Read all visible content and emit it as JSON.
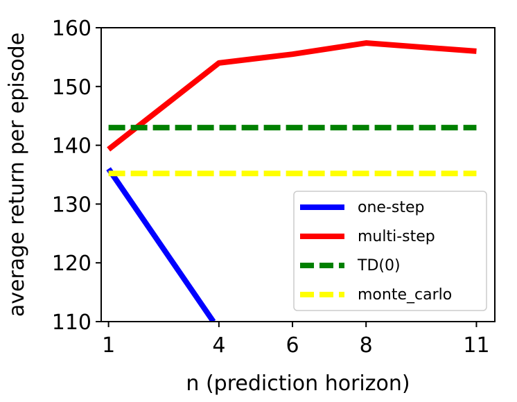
{
  "chart_data": {
    "type": "line",
    "xlabel": "n (prediction horizon)",
    "ylabel": "average return per episode",
    "xlim": [
      0.8,
      11.5
    ],
    "ylim": [
      110,
      160
    ],
    "xticks": [
      1,
      4,
      6,
      8,
      11
    ],
    "yticks": [
      110,
      120,
      130,
      140,
      150,
      160
    ],
    "grid": false,
    "legend_position": "lower-right",
    "series": [
      {
        "name": "one-step",
        "color": "#0000ff",
        "style": "solid",
        "x": [
          1,
          3.85
        ],
        "y": [
          136,
          110
        ]
      },
      {
        "name": "multi-step",
        "color": "#ff0000",
        "style": "solid",
        "x": [
          1,
          4,
          6,
          8,
          11
        ],
        "y": [
          139.3,
          154,
          155.5,
          157.4,
          156
        ]
      },
      {
        "name": "TD(0)",
        "color": "#008000",
        "style": "dashed",
        "x": [
          1,
          11
        ],
        "y": [
          143,
          143
        ]
      },
      {
        "name": "monte_carlo",
        "color": "#ffff00",
        "style": "dashed",
        "x": [
          1,
          11
        ],
        "y": [
          135.2,
          135.2
        ]
      }
    ]
  }
}
